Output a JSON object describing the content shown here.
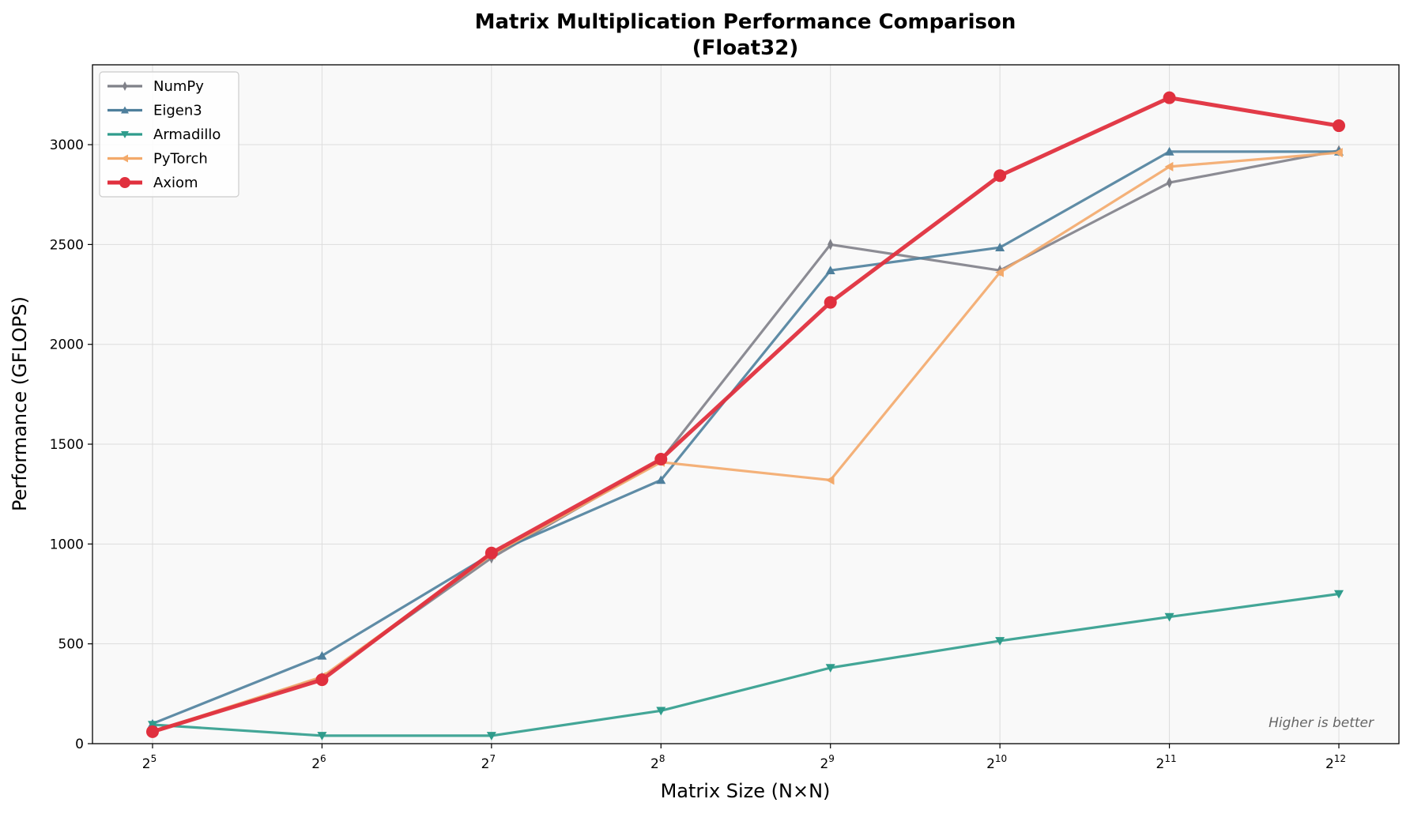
{
  "chart_data": {
    "type": "line",
    "title": "Matrix Multiplication Performance Comparison",
    "subtitle": "(Float32)",
    "xlabel": "Matrix Size (N×N)",
    "ylabel": "Performance (GFLOPS)",
    "x_scale": "log2",
    "x_ticks": [
      {
        "base": "2",
        "exp": "5",
        "value": 32
      },
      {
        "base": "2",
        "exp": "6",
        "value": 64
      },
      {
        "base": "2",
        "exp": "7",
        "value": 128
      },
      {
        "base": "2",
        "exp": "8",
        "value": 256
      },
      {
        "base": "2",
        "exp": "9",
        "value": 512
      },
      {
        "base": "2",
        "exp": "10",
        "value": 1024
      },
      {
        "base": "2",
        "exp": "11",
        "value": 2048
      },
      {
        "base": "2",
        "exp": "12",
        "value": 4096
      }
    ],
    "x": [
      32,
      64,
      128,
      256,
      512,
      1024,
      2048,
      4096
    ],
    "y_ticks": [
      "0",
      "500",
      "1000",
      "1500",
      "2000",
      "2500",
      "3000"
    ],
    "ylim": [
      0,
      3400
    ],
    "grid": true,
    "legend_position": "top-left",
    "annotation": "Higher is better",
    "series": [
      {
        "name": "NumPy",
        "color": "#7f8088",
        "marker": "thin_diamond",
        "values": [
          60,
          330,
          930,
          1420,
          2500,
          2370,
          2810,
          2970
        ]
      },
      {
        "name": "Eigen3",
        "color": "#4e7f9c",
        "marker": "triangle-up",
        "values": [
          100,
          440,
          950,
          1320,
          2370,
          2485,
          2965,
          2965
        ]
      },
      {
        "name": "Armadillo",
        "color": "#2f9c8c",
        "marker": "triangle-down",
        "values": [
          95,
          40,
          40,
          165,
          380,
          515,
          635,
          750
        ]
      },
      {
        "name": "PyTorch",
        "color": "#f3a96a",
        "marker": "triangle-left",
        "values": [
          60,
          335,
          945,
          1410,
          1320,
          2360,
          2890,
          2960
        ]
      },
      {
        "name": "Axiom",
        "color": "#e0303e",
        "marker": "circle",
        "values": [
          60,
          320,
          955,
          1425,
          2210,
          2845,
          3235,
          3095
        ]
      }
    ]
  }
}
